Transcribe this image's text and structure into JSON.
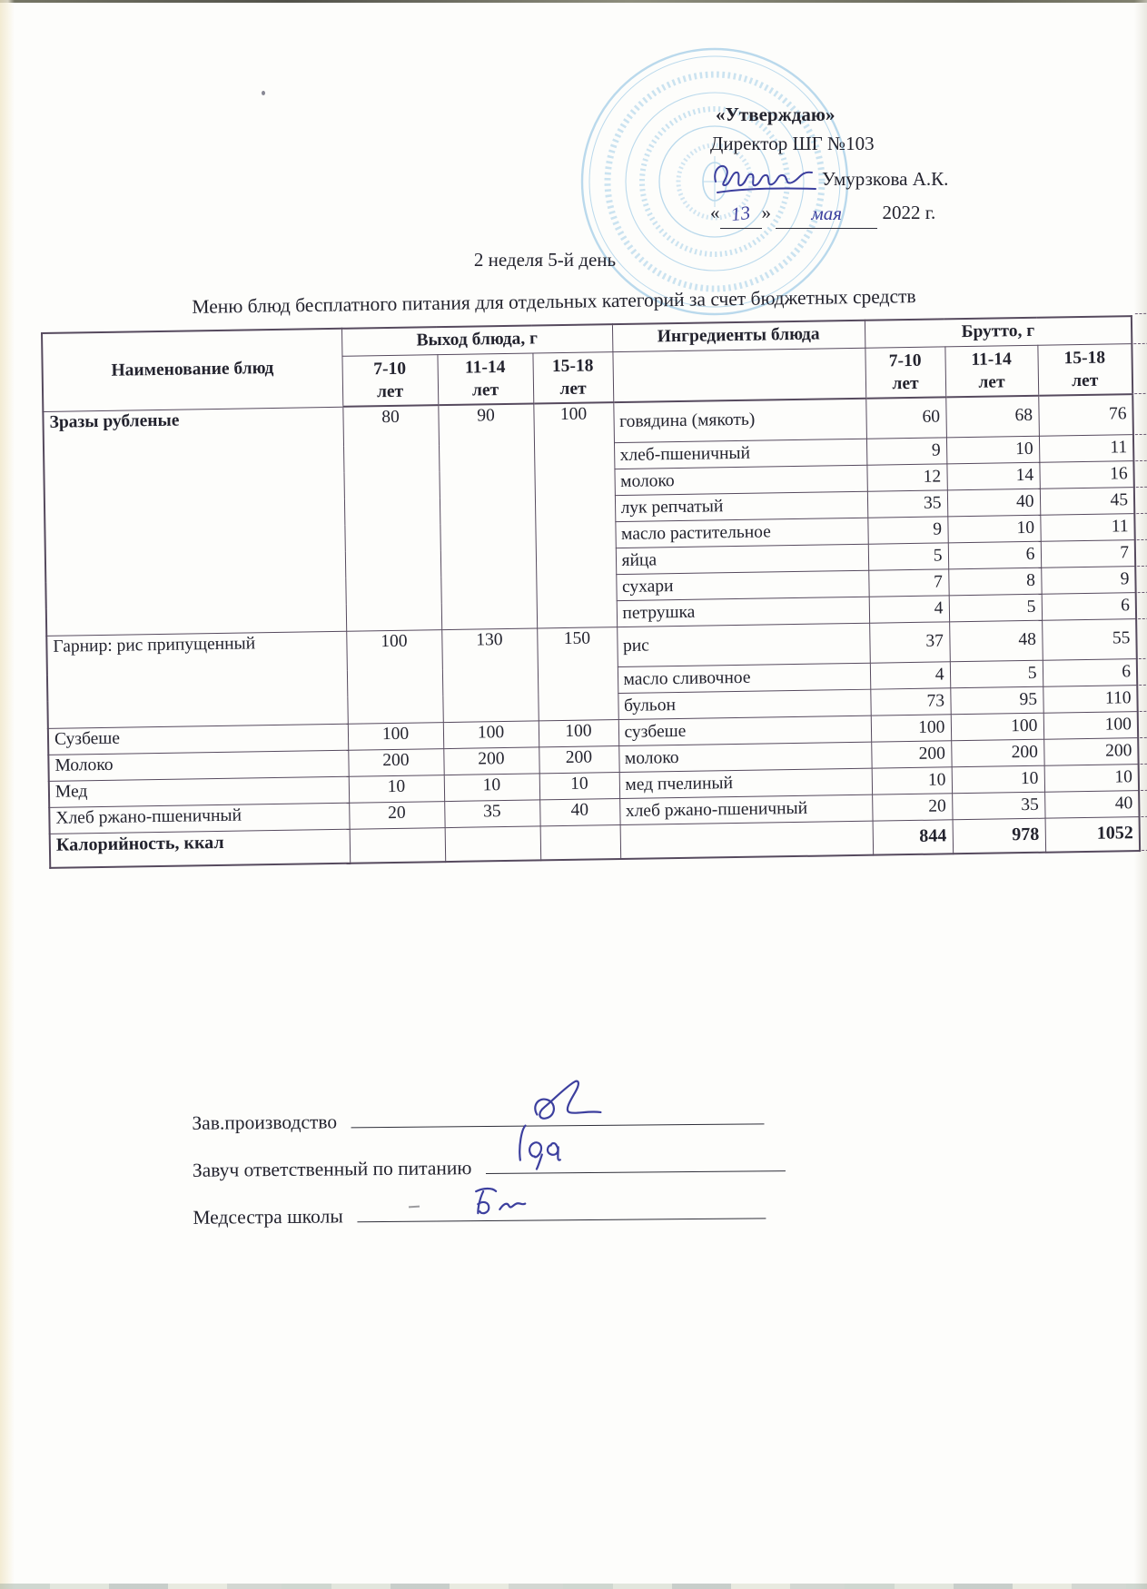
{
  "approval": {
    "heading": "«Утверждаю»",
    "director_line": "Директор ШГ №103",
    "signer_name": "Умурзкова А.К.",
    "date_open": "«",
    "date_day": "13",
    "date_close": "»",
    "date_month": "мая",
    "date_year": "2022 г."
  },
  "title": "2 неделя 5-й день",
  "subtitle": "Меню блюд бесплатного питания для отдельных категорий за счет бюджетных средств",
  "table": {
    "headers": {
      "dish": "Наименование блюд",
      "output": "Выход блюда, г",
      "ingredients": "Ингредиенты блюда",
      "brutto": "Брутто, г",
      "age_groups": [
        {
          "range": "7-10",
          "unit": "лет"
        },
        {
          "range": "11-14",
          "unit": "лет"
        },
        {
          "range": "15-18",
          "unit": "лет"
        }
      ]
    },
    "groups": [
      {
        "dish": "Зразы рубленые",
        "bold": true,
        "output": [
          "80",
          "90",
          "100"
        ],
        "rows": [
          {
            "ingredient": "говядина (мякоть)",
            "brutto": [
              "60",
              "68",
              "76"
            ]
          },
          {
            "ingredient": "хлеб-пшеничный",
            "brutto": [
              "9",
              "10",
              "11"
            ]
          },
          {
            "ingredient": "молоко",
            "brutto": [
              "12",
              "14",
              "16"
            ]
          },
          {
            "ingredient": "лук репчатый",
            "brutto": [
              "35",
              "40",
              "45"
            ]
          },
          {
            "ingredient": "масло растительное",
            "brutto": [
              "9",
              "10",
              "11"
            ]
          },
          {
            "ingredient": "яйца",
            "brutto": [
              "5",
              "6",
              "7"
            ]
          },
          {
            "ingredient": "сухари",
            "brutto": [
              "7",
              "8",
              "9"
            ]
          },
          {
            "ingredient": "петрушка",
            "brutto": [
              "4",
              "5",
              "6"
            ]
          }
        ]
      },
      {
        "dish": "Гарнир: рис припущенный",
        "bold": false,
        "output": [
          "100",
          "130",
          "150"
        ],
        "rows": [
          {
            "ingredient": "рис",
            "brutto": [
              "37",
              "48",
              "55"
            ]
          },
          {
            "ingredient": "масло сливочное",
            "brutto": [
              "4",
              "5",
              "6"
            ]
          },
          {
            "ingredient": "бульон",
            "brutto": [
              "73",
              "95",
              "110"
            ]
          }
        ]
      },
      {
        "dish": "Сузбеше",
        "bold": false,
        "output": [
          "100",
          "100",
          "100"
        ],
        "rows": [
          {
            "ingredient": "сузбеше",
            "brutto": [
              "100",
              "100",
              "100"
            ]
          }
        ]
      },
      {
        "dish": "Молоко",
        "bold": false,
        "output": [
          "200",
          "200",
          "200"
        ],
        "rows": [
          {
            "ingredient": "молоко",
            "brutto": [
              "200",
              "200",
              "200"
            ]
          }
        ]
      },
      {
        "dish": "Мед",
        "bold": false,
        "output": [
          "10",
          "10",
          "10"
        ],
        "rows": [
          {
            "ingredient": "мед пчелиный",
            "brutto": [
              "10",
              "10",
              "10"
            ]
          }
        ]
      },
      {
        "dish": "Хлеб ржано-пшеничный",
        "bold": false,
        "output": [
          "20",
          "35",
          "40"
        ],
        "rows": [
          {
            "ingredient": "хлеб ржано-пшеничный",
            "brutto": [
              "20",
              "35",
              "40"
            ]
          }
        ]
      }
    ],
    "totals": {
      "label": "Калорийность, ккал",
      "values": [
        "844",
        "978",
        "1052"
      ]
    }
  },
  "signatures": [
    {
      "label": "Зав.производство"
    },
    {
      "label": "Завуч ответственный по питанию"
    },
    {
      "label": "Медсестра школы"
    }
  ],
  "colors": {
    "stamp": "#5fa8d8",
    "ink": "#3c3f9e",
    "table_border": "#564a5e"
  }
}
